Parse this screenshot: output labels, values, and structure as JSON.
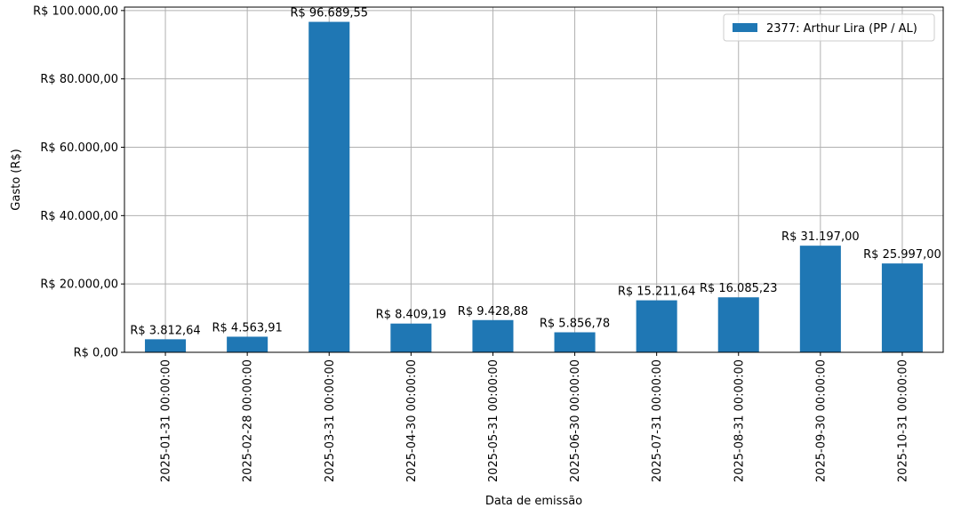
{
  "chart_data": {
    "type": "bar",
    "title": "",
    "xlabel": "Data de emissão",
    "ylabel": "Gasto (R$)",
    "ylim": [
      0,
      101000
    ],
    "yticks": [
      0,
      20000,
      40000,
      60000,
      80000,
      100000
    ],
    "ytick_labels": [
      "R$ 0,00",
      "R$ 20.000,00",
      "R$ 40.000,00",
      "R$ 60.000,00",
      "R$ 80.000,00",
      "R$ 100.000,00"
    ],
    "grid": true,
    "legend_position": "top-right",
    "categories": [
      "2025-01-31 00:00:00",
      "2025-02-28 00:00:00",
      "2025-03-31 00:00:00",
      "2025-04-30 00:00:00",
      "2025-05-31 00:00:00",
      "2025-06-30 00:00:00",
      "2025-07-31 00:00:00",
      "2025-08-31 00:00:00",
      "2025-09-30 00:00:00",
      "2025-10-31 00:00:00"
    ],
    "series": [
      {
        "name": "2377: Arthur Lira (PP / AL)",
        "color": "#1f77b4",
        "values": [
          3812.64,
          4563.91,
          96689.55,
          8409.19,
          9428.88,
          5856.78,
          15211.64,
          16085.23,
          31197.0,
          25997.0
        ],
        "labels": [
          "R$ 3.812,64",
          "R$ 4.563,91",
          "R$ 96.689,55",
          "R$ 8.409,19",
          "R$ 9.428,88",
          "R$ 5.856,78",
          "R$ 15.211,64",
          "R$ 16.085,23",
          "R$ 31.197,00",
          "R$ 25.997,00"
        ]
      }
    ]
  }
}
